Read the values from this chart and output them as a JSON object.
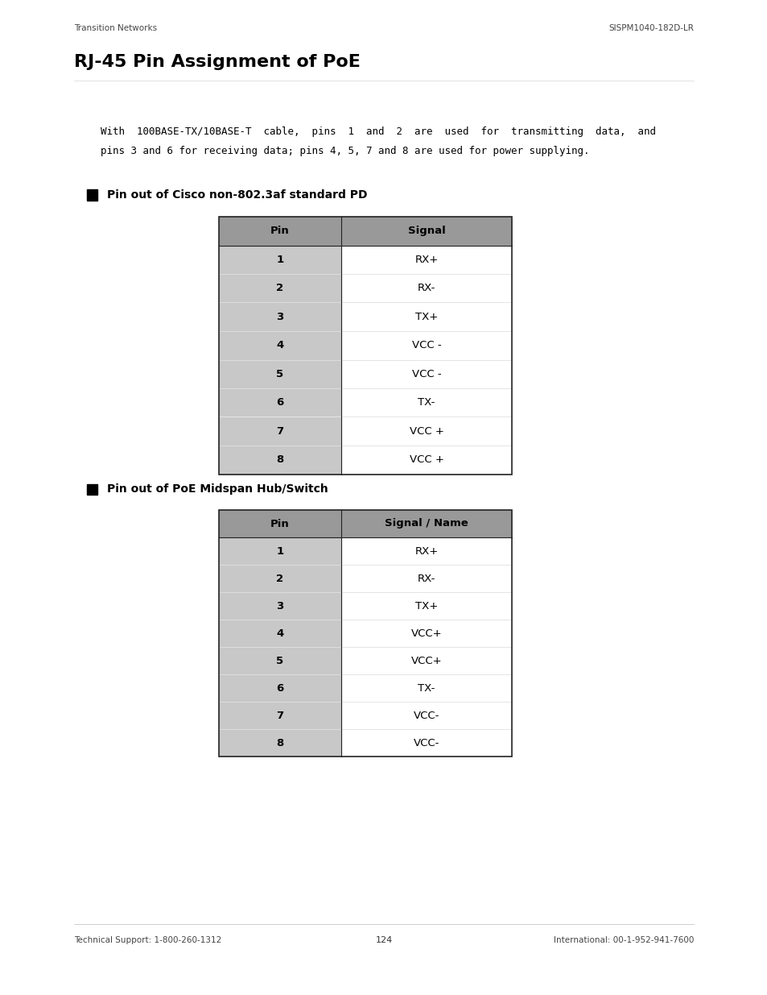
{
  "page_width": 9.54,
  "page_height": 12.35,
  "dpi": 100,
  "bg_color": "#ffffff",
  "header_left": "Transition Networks",
  "header_right": "SISPM1040-182D-LR",
  "title": "RJ-45 Pin Assignment of PoE",
  "body_text_line1": "With  100BASE-TX/10BASE-T  cable,  pins  1  and  2  are  used  for  transmitting  data,  and",
  "body_text_line2": "pins 3 and 6 for receiving data; pins 4, 5, 7 and 8 are used for power supplying.",
  "section1_label": "Pin out of Cisco non-802.3af standard PD",
  "table1_header": [
    "Pin",
    "Signal"
  ],
  "table1_rows": [
    [
      "1",
      "RX+"
    ],
    [
      "2",
      "RX-"
    ],
    [
      "3",
      "TX+"
    ],
    [
      "4",
      "VCC -"
    ],
    [
      "5",
      "VCC -"
    ],
    [
      "6",
      "TX-"
    ],
    [
      "7",
      "VCC +"
    ],
    [
      "8",
      "VCC +"
    ]
  ],
  "section2_label": "Pin out of PoE Midspan Hub/Switch",
  "table2_header": [
    "Pin",
    "Signal / Name"
  ],
  "table2_rows": [
    [
      "1",
      "RX+"
    ],
    [
      "2",
      "RX-"
    ],
    [
      "3",
      "TX+"
    ],
    [
      "4",
      "VCC+"
    ],
    [
      "5",
      "VCC+"
    ],
    [
      "6",
      "TX-"
    ],
    [
      "7",
      "VCC-"
    ],
    [
      "8",
      "VCC-"
    ]
  ],
  "footer_left": "Technical Support: 1-800-260-1312",
  "footer_right": "International: 00-1-952-941-7600",
  "page_number": "124",
  "table_header_bg": "#999999",
  "table_row_bg_left": "#c8c8c8",
  "table_row_bg_right": "#ffffff",
  "table_border_color": "#222222",
  "table_inner_line_color": "#e0e0e0"
}
